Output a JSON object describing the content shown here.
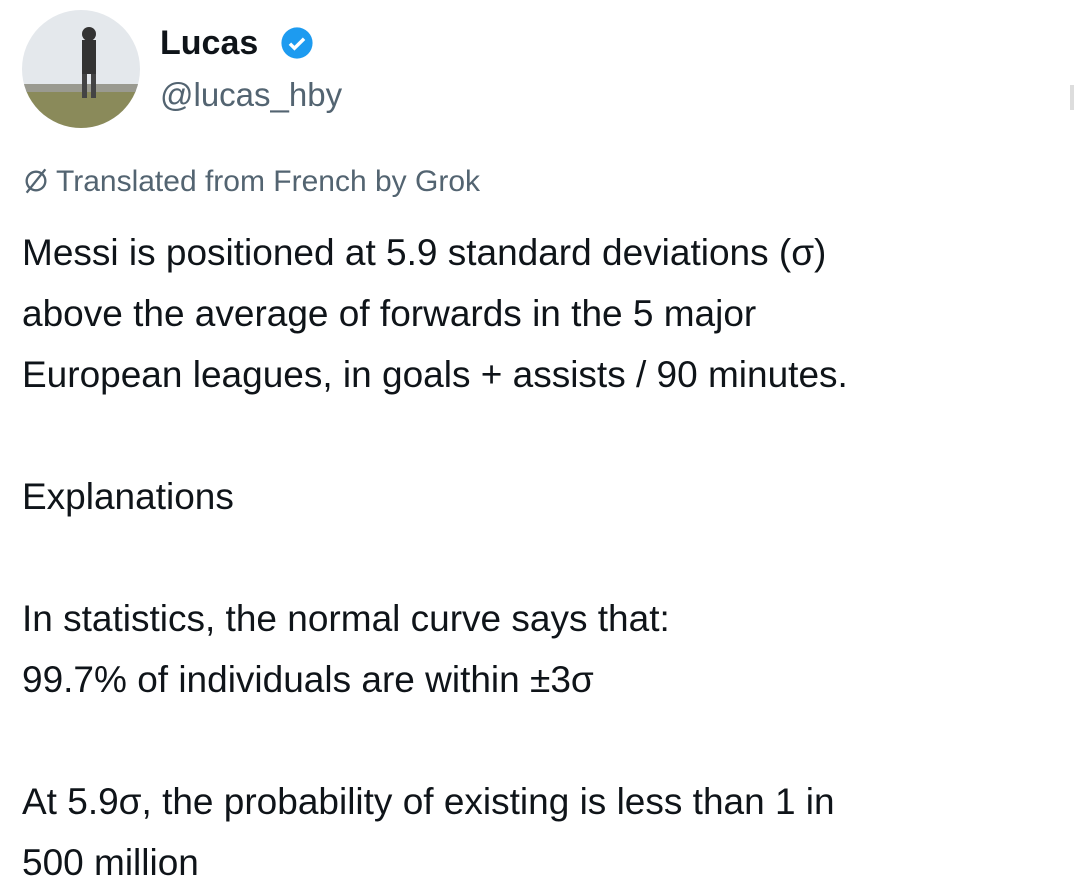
{
  "author": {
    "name": "Lucas",
    "handle": "@lucas_hby"
  },
  "translation_note": "Translated from French by Grok",
  "paragraphs": [
    [
      "Messi is positioned at 5.9 standard deviations (σ)",
      "above the average of forwards in the 5 major",
      "European leagues, in goals + assists / 90 minutes."
    ],
    [
      "Explanations"
    ],
    [
      "In statistics, the normal curve says that:",
      "99.7% of individuals are within ±3σ"
    ],
    [
      "At 5.9σ, the probability of existing is less than 1 in",
      "500 million"
    ]
  ]
}
